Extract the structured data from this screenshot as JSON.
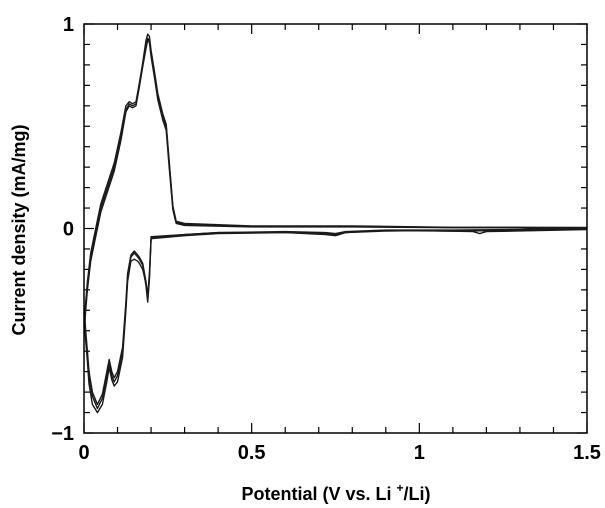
{
  "chart_data": {
    "type": "line",
    "title": "",
    "xlabel": {
      "pre": "Potential (V vs. Li ",
      "sup": "+",
      "post": "/Li)"
    },
    "ylabel": "Current density (mA/mg)",
    "xlim": [
      0,
      1.5
    ],
    "ylim": [
      -1,
      1
    ],
    "x_ticks": [
      0,
      0.5,
      1,
      1.5
    ],
    "x_tick_labels": [
      "0",
      "0.5",
      "1",
      "1.5"
    ],
    "y_ticks": [
      -1,
      0,
      1
    ],
    "y_tick_labels": [
      "−1",
      "0",
      "1"
    ],
    "grid": false,
    "legend": "none",
    "line_color": "#1a1a1a",
    "series": [
      {
        "x": [
          1.5,
          1.3,
          1.1,
          0.9,
          0.78,
          0.75,
          0.72,
          0.6,
          0.4,
          0.3,
          0.2,
          0.195,
          0.19,
          0.185,
          0.175,
          0.165,
          0.16,
          0.15,
          0.14,
          0.13,
          0.125,
          0.115,
          0.1,
          0.09,
          0.083,
          0.075,
          0.068,
          0.055,
          0.04,
          0.025,
          0.015,
          0.01,
          0.005,
          0.002,
          0.005,
          0.01,
          0.02,
          0.035,
          0.05,
          0.07,
          0.09,
          0.11,
          0.125,
          0.135,
          0.145,
          0.155,
          0.165,
          0.175,
          0.185,
          0.19,
          0.195,
          0.2,
          0.21,
          0.22,
          0.235,
          0.245,
          0.255,
          0.265,
          0.275,
          0.3,
          0.5,
          0.8,
          1.1,
          1.3,
          1.5
        ],
        "y": [
          0.0,
          -0.01,
          -0.012,
          -0.01,
          -0.02,
          -0.035,
          -0.03,
          -0.02,
          -0.025,
          -0.035,
          -0.05,
          -0.25,
          -0.36,
          -0.28,
          -0.18,
          -0.15,
          -0.14,
          -0.12,
          -0.14,
          -0.24,
          -0.38,
          -0.6,
          -0.72,
          -0.75,
          -0.72,
          -0.66,
          -0.72,
          -0.83,
          -0.88,
          -0.82,
          -0.72,
          -0.62,
          -0.52,
          -0.45,
          -0.38,
          -0.28,
          -0.14,
          -0.02,
          0.1,
          0.2,
          0.3,
          0.45,
          0.58,
          0.61,
          0.6,
          0.61,
          0.7,
          0.8,
          0.9,
          0.93,
          0.92,
          0.85,
          0.75,
          0.65,
          0.55,
          0.5,
          0.3,
          0.1,
          0.03,
          0.02,
          0.01,
          0.01,
          0.005,
          0.005,
          0.0
        ]
      },
      {
        "x": [
          1.5,
          1.2,
          1.18,
          1.16,
          1.0,
          0.9,
          0.78,
          0.75,
          0.72,
          0.6,
          0.4,
          0.3,
          0.2,
          0.195,
          0.19,
          0.185,
          0.175,
          0.165,
          0.16,
          0.15,
          0.14,
          0.13,
          0.125,
          0.115,
          0.1,
          0.09,
          0.083,
          0.075,
          0.068,
          0.055,
          0.04,
          0.025,
          0.015,
          0.01,
          0.005,
          0.002,
          0.005,
          0.01,
          0.02,
          0.035,
          0.05,
          0.07,
          0.09,
          0.11,
          0.125,
          0.135,
          0.145,
          0.155,
          0.165,
          0.175,
          0.185,
          0.19,
          0.195,
          0.2,
          0.21,
          0.22,
          0.235,
          0.245,
          0.255,
          0.265,
          0.275,
          0.3,
          0.5,
          0.8,
          1.1,
          1.3,
          1.5
        ],
        "y": [
          -0.005,
          -0.015,
          -0.025,
          -0.015,
          -0.01,
          -0.012,
          -0.02,
          -0.03,
          -0.025,
          -0.02,
          -0.02,
          -0.03,
          -0.045,
          -0.24,
          -0.34,
          -0.27,
          -0.2,
          -0.17,
          -0.16,
          -0.15,
          -0.16,
          -0.26,
          -0.4,
          -0.63,
          -0.75,
          -0.77,
          -0.74,
          -0.68,
          -0.75,
          -0.86,
          -0.9,
          -0.86,
          -0.76,
          -0.65,
          -0.55,
          -0.48,
          -0.4,
          -0.3,
          -0.16,
          -0.04,
          0.08,
          0.18,
          0.28,
          0.43,
          0.57,
          0.6,
          0.59,
          0.6,
          0.69,
          0.79,
          0.88,
          0.92,
          0.91,
          0.84,
          0.74,
          0.63,
          0.53,
          0.48,
          0.28,
          0.09,
          0.025,
          0.015,
          0.008,
          0.008,
          0.004,
          0.004,
          -0.005
        ]
      },
      {
        "x": [
          1.5,
          1.3,
          1.1,
          0.9,
          0.78,
          0.75,
          0.72,
          0.6,
          0.4,
          0.3,
          0.2,
          0.195,
          0.19,
          0.185,
          0.175,
          0.165,
          0.16,
          0.15,
          0.14,
          0.13,
          0.125,
          0.115,
          0.1,
          0.09,
          0.083,
          0.075,
          0.068,
          0.055,
          0.04,
          0.025,
          0.015,
          0.01,
          0.005,
          0.002,
          0.005,
          0.01,
          0.02,
          0.035,
          0.05,
          0.07,
          0.09,
          0.11,
          0.125,
          0.135,
          0.145,
          0.155,
          0.165,
          0.175,
          0.185,
          0.19,
          0.195,
          0.2,
          0.21,
          0.22,
          0.235,
          0.245,
          0.255,
          0.265,
          0.275,
          0.3,
          0.5,
          0.8,
          1.1,
          1.3,
          1.5
        ],
        "y": [
          0.005,
          -0.005,
          -0.008,
          -0.008,
          -0.015,
          -0.025,
          -0.02,
          -0.015,
          -0.02,
          -0.03,
          -0.04,
          -0.22,
          -0.33,
          -0.26,
          -0.17,
          -0.14,
          -0.13,
          -0.11,
          -0.13,
          -0.22,
          -0.36,
          -0.58,
          -0.7,
          -0.73,
          -0.7,
          -0.64,
          -0.7,
          -0.81,
          -0.86,
          -0.8,
          -0.7,
          -0.6,
          -0.5,
          -0.43,
          -0.36,
          -0.26,
          -0.12,
          0.0,
          0.12,
          0.22,
          0.32,
          0.47,
          0.6,
          0.62,
          0.61,
          0.62,
          0.71,
          0.81,
          0.92,
          0.95,
          0.94,
          0.87,
          0.77,
          0.66,
          0.56,
          0.51,
          0.31,
          0.11,
          0.035,
          0.025,
          0.012,
          0.012,
          0.006,
          0.006,
          0.005
        ]
      }
    ]
  }
}
